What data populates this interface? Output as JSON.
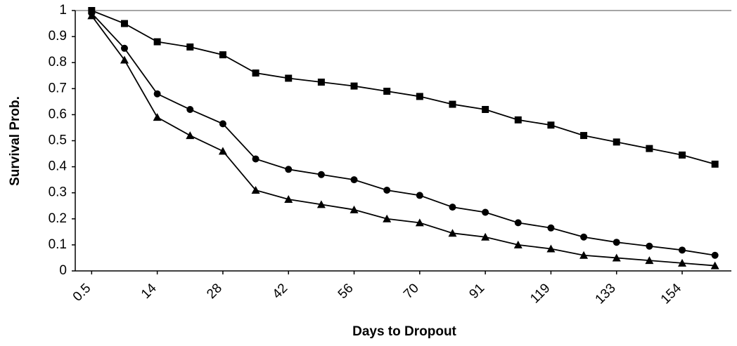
{
  "chart_data": {
    "type": "line",
    "x_label": "Days to Dropout",
    "y_label": "Survival Prob.",
    "categories": [
      "0.5",
      null,
      "14",
      null,
      "28",
      null,
      "42",
      null,
      "56",
      null,
      "70",
      null,
      "91",
      null,
      "119",
      null,
      "133",
      null,
      "154",
      null
    ],
    "series": [
      {
        "color": "#000000",
        "marker": "square",
        "values": [
          1.0,
          0.95,
          0.88,
          0.86,
          0.83,
          0.76,
          0.74,
          0.725,
          0.71,
          0.69,
          0.67,
          0.64,
          0.62,
          0.58,
          0.56,
          0.52,
          0.495,
          0.47,
          0.445,
          0.41
        ]
      },
      {
        "color": "#000000",
        "marker": "circle",
        "values": [
          0.99,
          0.855,
          0.68,
          0.62,
          0.565,
          0.43,
          0.39,
          0.37,
          0.35,
          0.31,
          0.29,
          0.245,
          0.225,
          0.185,
          0.165,
          0.13,
          0.11,
          0.095,
          0.08,
          0.06
        ]
      },
      {
        "color": "#000000",
        "marker": "triangle",
        "values": [
          0.98,
          0.81,
          0.59,
          0.52,
          0.46,
          0.31,
          0.275,
          0.255,
          0.235,
          0.2,
          0.185,
          0.145,
          0.13,
          0.1,
          0.085,
          0.06,
          0.05,
          0.04,
          0.03,
          0.02
        ]
      }
    ],
    "ylim": [
      0,
      1
    ],
    "yticks": [
      0,
      0.1,
      0.2,
      0.3,
      0.4,
      0.5,
      0.6,
      0.7,
      0.8,
      0.9,
      1
    ],
    "grid": false
  }
}
